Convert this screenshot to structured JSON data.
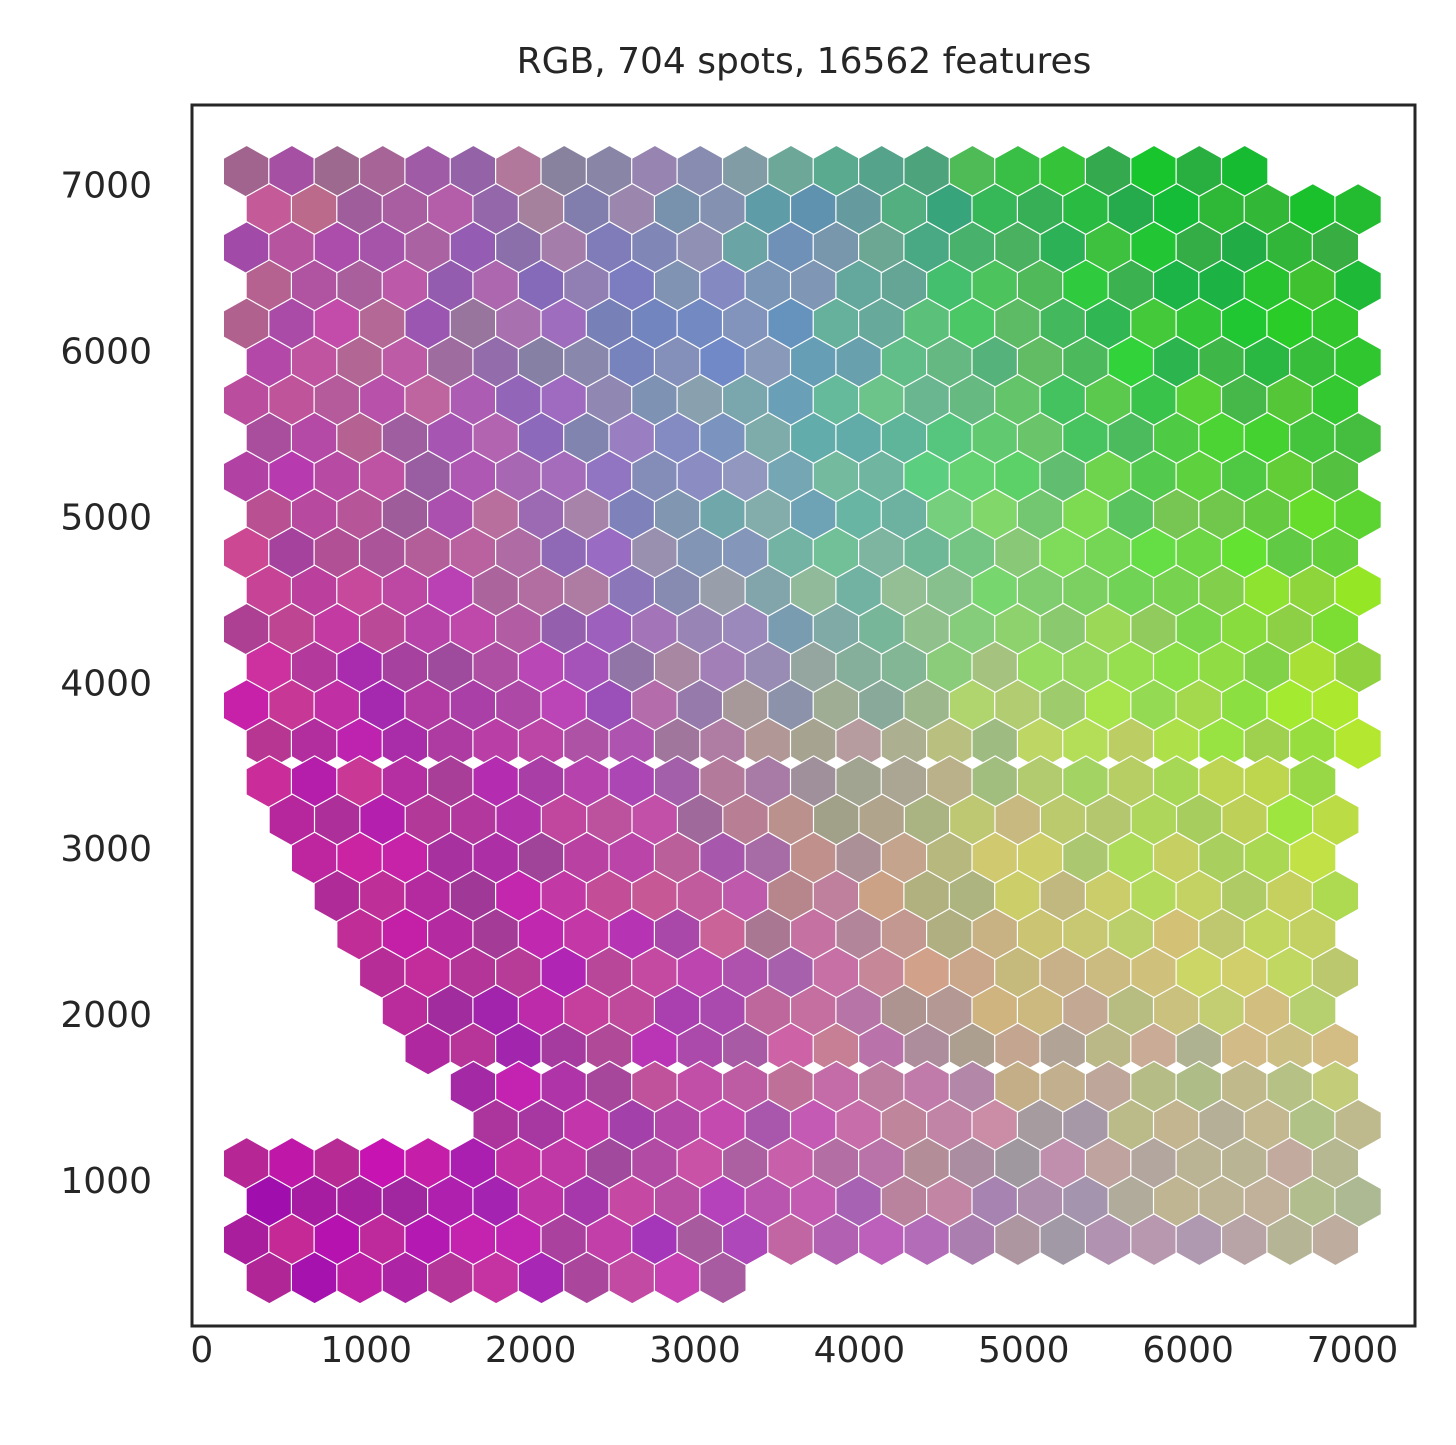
{
  "chart_data": {
    "type": "heatmap",
    "title": "RGB, 704 spots, 16562 features",
    "xlabel": "",
    "ylabel": "",
    "xlim": [
      -60,
      7380
    ],
    "ylim": [
      120,
      7480
    ],
    "x_ticks": [
      0,
      1000,
      2000,
      3000,
      4000,
      5000,
      6000,
      7000
    ],
    "y_ticks": [
      1000,
      2000,
      3000,
      4000,
      5000,
      6000,
      7000
    ],
    "x_tick_labels": [
      "0",
      "1000",
      "2000",
      "3000",
      "4000",
      "5000",
      "6000",
      "7000"
    ],
    "y_tick_labels": [
      "1000",
      "2000",
      "3000",
      "4000",
      "5000",
      "6000",
      "7000"
    ],
    "grid": false,
    "spot_layout": {
      "shape": "hexagon",
      "x_spacing": 276,
      "row_spacing": 230,
      "first_row_y": 7080,
      "row_count": 31,
      "spot_count": 704
    },
    "color_regions": [
      {
        "name": "magenta",
        "color": "#c0208a"
      },
      {
        "name": "purple",
        "color": "#a01fb5"
      },
      {
        "name": "mauve",
        "color": "#b46aa0"
      },
      {
        "name": "blue",
        "color": "#5cb8f5"
      },
      {
        "name": "teal",
        "color": "#6a9faa"
      },
      {
        "name": "dark-green",
        "color": "#12b030"
      },
      {
        "name": "light-green",
        "color": "#90f090"
      },
      {
        "name": "yellow-green",
        "color": "#a8e63a"
      },
      {
        "name": "yellow",
        "color": "#f5e08a"
      },
      {
        "name": "grey",
        "color": "#8c8c8c"
      }
    ]
  }
}
